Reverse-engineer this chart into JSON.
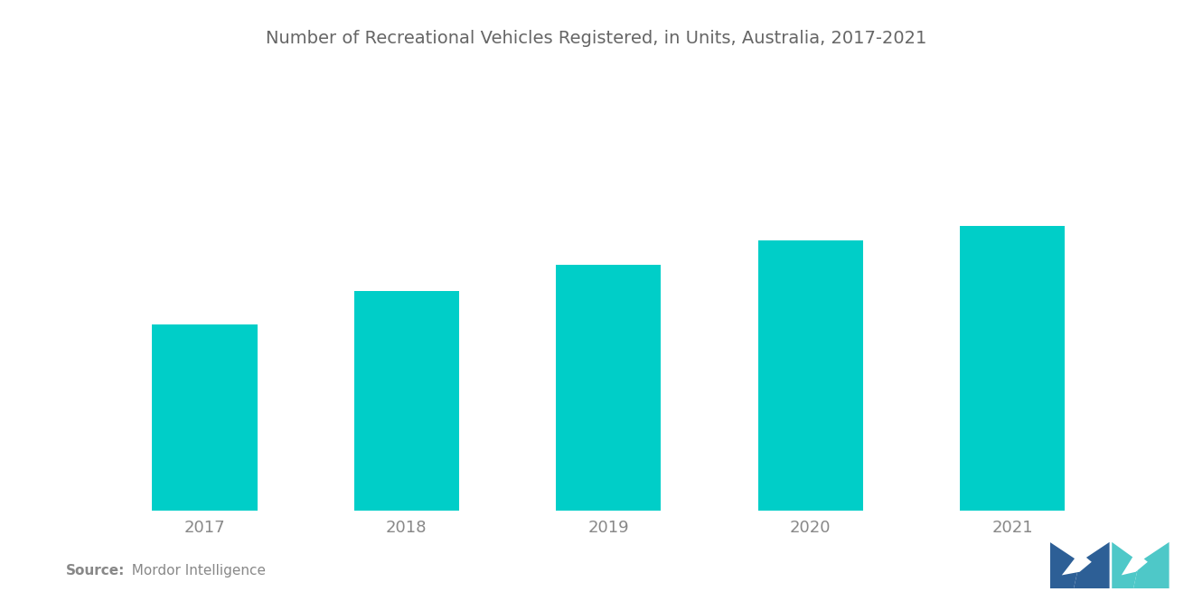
{
  "title": "Number of Recreational Vehicles Registered, in Units, Australia, 2017-2021",
  "categories": [
    "2017",
    "2018",
    "2019",
    "2020",
    "2021"
  ],
  "values": [
    100,
    118,
    132,
    145,
    153
  ],
  "bar_color": "#00CEC8",
  "background_color": "#ffffff",
  "title_color": "#666666",
  "source_label_bold": "Source:",
  "source_label_normal": "  Mordor Intelligence",
  "source_color": "#888888",
  "tick_label_color": "#888888",
  "title_fontsize": 14,
  "source_fontsize": 11,
  "tick_fontsize": 13,
  "bar_width": 0.52,
  "ylim": [
    0,
    200
  ],
  "logo_dark_color": "#2d5f96",
  "logo_light_color": "#4ec8c8"
}
